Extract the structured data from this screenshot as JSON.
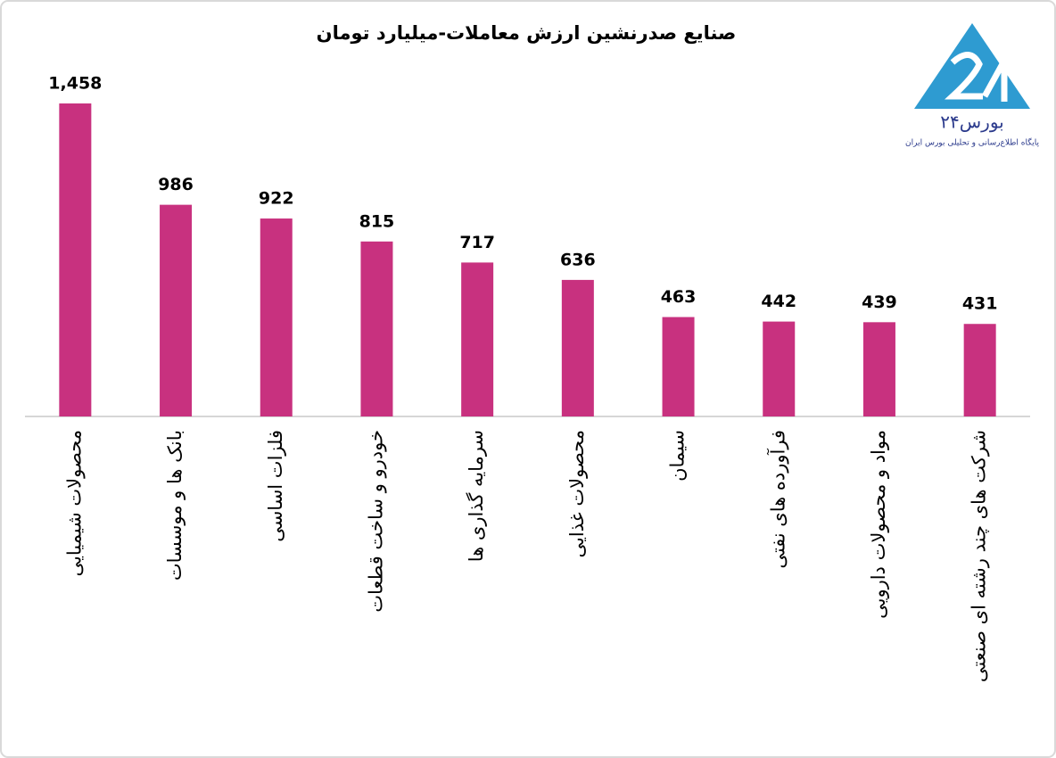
{
  "chart_data": {
    "type": "bar",
    "title": "صنایع صدرنشین ارزش معاملات-میلیارد تومان",
    "categories": [
      "محصولات شیمیایی",
      "بانک ها و موسسات",
      "فلزات اساسی",
      "خودرو و ساخت قطعات",
      "سرمایه گذاری ها",
      "محصولات غذایی",
      "سیمان",
      "فرآورده های نفتی",
      "مواد و محصولات دارویی",
      "شرکت های چند رشته ای صنعتی"
    ],
    "values": [
      1458,
      986,
      922,
      815,
      717,
      636,
      463,
      442,
      439,
      431
    ],
    "value_labels": [
      "1,458",
      "986",
      "922",
      "815",
      "717",
      "636",
      "463",
      "442",
      "439",
      "431"
    ],
    "color": "#c8317f"
  },
  "logo": {
    "name": "بورس۲۴",
    "tagline": "پایگاه اطلاع‌رسانی و تحلیلی بورس ایران"
  }
}
